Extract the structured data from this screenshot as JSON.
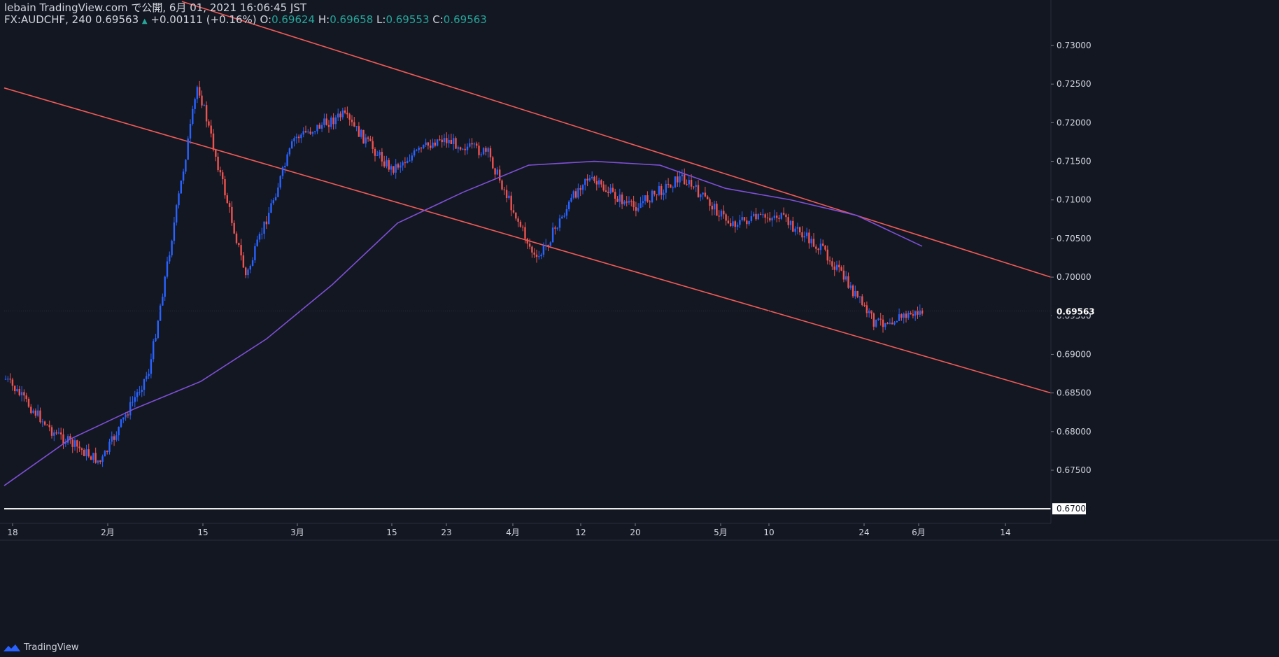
{
  "header": {
    "line1": "lebain TradingView.com で公開, 6月 01, 2021 16:06:45 JST",
    "symbol": "FX:AUDCHF, 240",
    "last": "0.69563",
    "change_arrow": "▲",
    "change": "+0.00111 (+0.16%)",
    "o_label": "O:",
    "o": "0.69624",
    "h_label": "H:",
    "h": "0.69658",
    "l_label": "L:",
    "l": "0.69553",
    "c_label": "C:",
    "c": "0.69563"
  },
  "footer": {
    "brand": "TradingView",
    "logo_icon": "tradingview-logo-icon"
  },
  "colors": {
    "background": "#131722",
    "up": "#2962ff",
    "down": "#ef5350",
    "trendline": "#f05a56",
    "ma": "#7e4fd6",
    "support": "#ffffff",
    "axis_text": "#d1d4dc"
  },
  "chart_data": {
    "type": "candlestick",
    "title": "",
    "xlabel": "",
    "ylabel": "",
    "ylim": [
      0.6647,
      0.7327
    ],
    "y_ticks": [
      "0.73000",
      "0.72500",
      "0.72000",
      "0.71500",
      "0.71000",
      "0.70500",
      "0.70000",
      "0.69500",
      "0.69000",
      "0.68500",
      "0.68000",
      "0.67500"
    ],
    "x_ticks": [
      "18",
      "2月",
      "15",
      "3月",
      "15",
      "23",
      "4月",
      "12",
      "20",
      "5月",
      "10",
      "24",
      "6月",
      "14"
    ],
    "current_price_label": "0.69563",
    "support_label": "0.67000",
    "horizontal_line": 0.67,
    "price_path": [
      {
        "t": "18",
        "p": 0.687
      },
      {
        "t": "2月",
        "p": 0.68
      },
      {
        "t": "2月",
        "p": 0.676
      },
      {
        "t": "15",
        "p": 0.688
      },
      {
        "t": "3月",
        "p": 0.725
      },
      {
        "t": "3月",
        "p": 0.7
      },
      {
        "t": "15",
        "p": 0.718
      },
      {
        "t": "15",
        "p": 0.721
      },
      {
        "t": "23",
        "p": 0.714
      },
      {
        "t": "4月",
        "p": 0.718
      },
      {
        "t": "4月",
        "p": 0.716
      },
      {
        "t": "12",
        "p": 0.702
      },
      {
        "t": "12",
        "p": 0.713
      },
      {
        "t": "20",
        "p": 0.709
      },
      {
        "t": "20",
        "p": 0.713
      },
      {
        "t": "5月",
        "p": 0.707
      },
      {
        "t": "10",
        "p": 0.708
      },
      {
        "t": "10",
        "p": 0.703
      },
      {
        "t": "24",
        "p": 0.694
      },
      {
        "t": "6月",
        "p": 0.6956
      }
    ],
    "moving_average": [
      {
        "t": "18",
        "p": 0.673
      },
      {
        "t": "2月",
        "p": 0.679
      },
      {
        "t": "15",
        "p": 0.683
      },
      {
        "t": "15",
        "p": 0.6865
      },
      {
        "t": "3月",
        "p": 0.692
      },
      {
        "t": "15",
        "p": 0.699
      },
      {
        "t": "23",
        "p": 0.707
      },
      {
        "t": "4月",
        "p": 0.711
      },
      {
        "t": "4月",
        "p": 0.7145
      },
      {
        "t": "12",
        "p": 0.715
      },
      {
        "t": "20",
        "p": 0.7145
      },
      {
        "t": "5月",
        "p": 0.7115
      },
      {
        "t": "10",
        "p": 0.71
      },
      {
        "t": "10",
        "p": 0.708
      },
      {
        "t": "6月",
        "p": 0.704
      }
    ],
    "channel_upper": [
      {
        "t": "2月",
        "p": 0.7357
      },
      {
        "t": "6月",
        "p": 0.7
      }
    ],
    "channel_lower": [
      {
        "t": "18",
        "p": 0.7245
      },
      {
        "t": "6月",
        "p": 0.685
      }
    ]
  }
}
